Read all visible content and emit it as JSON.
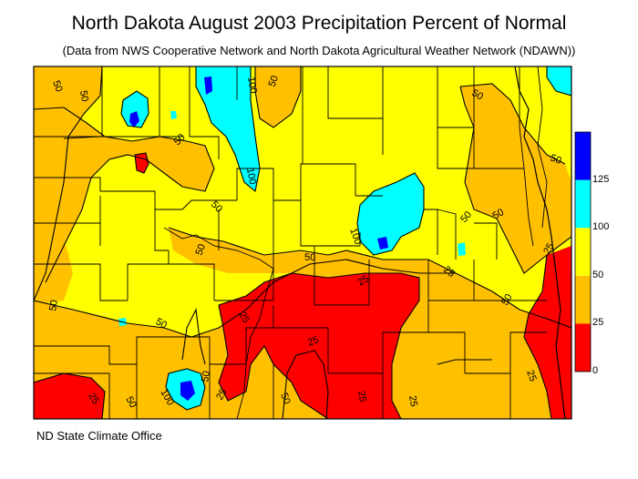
{
  "title": "North Dakota August 2003 Precipitation Percent of Normal",
  "subtitle": "(Data from NWS Cooperative Network and North Dakota Agricultural Weather Network (NDAWN))",
  "credit": "ND State Climate Office",
  "legend": {
    "bands": [
      {
        "from": 0,
        "to": 25,
        "color": "#ff0000"
      },
      {
        "from": 25,
        "to": 50,
        "color": "#ffc000"
      },
      {
        "from": 50,
        "to": 100,
        "color": "#ffff00"
      },
      {
        "from": 100,
        "to": 125,
        "color": "#00ffff"
      },
      {
        "from": 125,
        "to": 150,
        "color": "#0000ff"
      }
    ],
    "tick_labels": [
      "0",
      "25",
      "50",
      "100",
      "125"
    ]
  },
  "contour_labels": [
    "50",
    "50",
    "100",
    "50",
    "50",
    "50",
    "50",
    "100",
    "50",
    "50",
    "50",
    "100",
    "50",
    "25",
    "25",
    "50",
    "25",
    "50",
    "50",
    "50",
    "25",
    "25",
    "50",
    "100",
    "50",
    "25",
    "25",
    "25",
    "50",
    "25",
    "25"
  ]
}
